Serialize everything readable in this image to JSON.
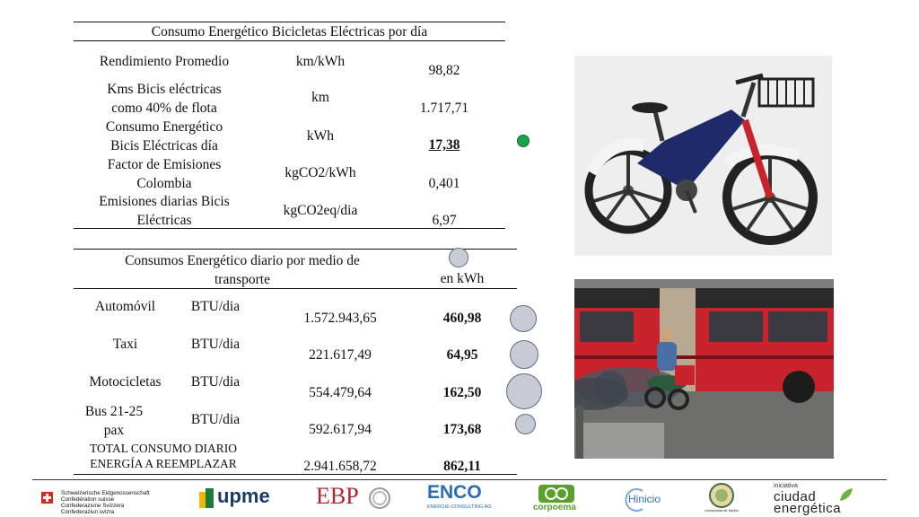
{
  "table1": {
    "title": "Consumo Energético Bicicletas Eléctricas por día",
    "rows": [
      {
        "label": [
          "Rendimiento Promedio"
        ],
        "unit": "km/kWh",
        "value": "98,82"
      },
      {
        "label": [
          "Kms Bicis eléctricas",
          "como 40% de flota"
        ],
        "unit": "km",
        "value": "1.717,71"
      },
      {
        "label": [
          "Consumo Energético",
          "Bicis Eléctricas día"
        ],
        "unit": "kWh",
        "value": "17,38"
      },
      {
        "label": [
          "Factor de Emisiones",
          "Colombia"
        ],
        "unit": "kgCO2/kWh",
        "value": "0,401"
      },
      {
        "label": [
          "Emisiones diarias Bicis",
          "Eléctricas"
        ],
        "unit": "kgCO2eq/dia",
        "value": "6,97"
      }
    ]
  },
  "table2": {
    "header": [
      "Consumos Energético diario por medio de",
      "transporte"
    ],
    "header_unit": "en kWh",
    "rows": [
      {
        "label": [
          "Automóvil"
        ],
        "unit": "BTU/dia",
        "btu": "1.572.943,65",
        "kwh": "460,98"
      },
      {
        "label": [
          "Taxi"
        ],
        "unit": "BTU/dia",
        "btu": "221.617,49",
        "kwh": "64,95"
      },
      {
        "label": [
          "Motocicletas"
        ],
        "unit": "BTU/dia",
        "btu": "554.479,64",
        "kwh": "162,50"
      },
      {
        "label": [
          "Bus 21-25",
          "pax"
        ],
        "unit": "BTU/dia",
        "btu": "592.617,94",
        "kwh": "173,68"
      }
    ],
    "total": {
      "label": [
        "TOTAL CONSUMO DIARIO",
        "ENERGÍA A REEMPLAZAR"
      ],
      "btu": "2.941.658,72",
      "kwh": "862,11"
    }
  },
  "colors": {
    "green_dot": "#1aa34a",
    "circle_fill": "#c9cbd4",
    "circle_border": "#5a6a94",
    "bus_red": "#c8232b",
    "bike_blue": "#1f2a6b"
  },
  "footer_logos": {
    "swiss": [
      "Schweizerische Eidgenossenschaft",
      "Confédération suisse",
      "Confederazione Svizzera",
      "Confederaziun svizra"
    ],
    "upme": "upme",
    "ebp": "EBP",
    "enco": "ENCO",
    "enco_sub": "ENERGIE-CONSULTING AG",
    "corpoema": "corpoema",
    "hinicio": "Hinicio",
    "narino": "Universidad de Nariño",
    "ciudad": [
      "iniciativa",
      "ciudad",
      "energética"
    ]
  }
}
